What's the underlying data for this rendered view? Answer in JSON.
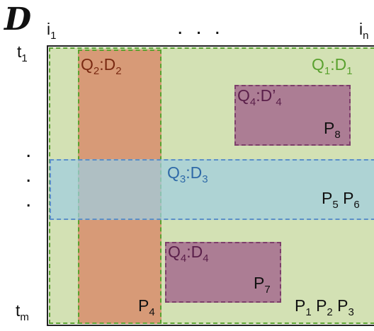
{
  "header": {
    "dataset_symbol": "D",
    "col_first": {
      "base": "i",
      "sub": "1"
    },
    "col_dots": "...",
    "col_last": {
      "base": "i",
      "sub": "n"
    }
  },
  "rows": {
    "row_first": {
      "base": "t",
      "sub": "1"
    },
    "row_dot": ".",
    "row_last": {
      "base": "t",
      "sub": "m"
    }
  },
  "regions": {
    "q1": {
      "name": "Q",
      "name_sub": "1",
      "sep": ":D",
      "data_sub": "1",
      "color": "#5aa12f"
    },
    "q2": {
      "name": "Q",
      "name_sub": "2",
      "sep": ":D",
      "data_sub": "2",
      "color": "#7a2a12"
    },
    "q3": {
      "name": "Q",
      "name_sub": "3",
      "sep": ":D",
      "data_sub": "3",
      "color": "#2f6aa8"
    },
    "q4a": {
      "name": "Q",
      "name_sub": "4",
      "sep": ":D’",
      "data_sub": "4",
      "color": "#5a1f4a"
    },
    "q4b": {
      "name": "Q",
      "name_sub": "4",
      "sep": ":D",
      "data_sub": "4",
      "color": "#5a1f4a"
    }
  },
  "partitions": {
    "p8": {
      "base": "P",
      "sub": "8"
    },
    "p5": {
      "base": "P",
      "sub": "5"
    },
    "p6": {
      "base": "P",
      "sub": "6"
    },
    "p7": {
      "base": "P",
      "sub": "7"
    },
    "p4": {
      "base": "P",
      "sub": "4"
    },
    "p1": {
      "base": "P",
      "sub": "1"
    },
    "p2": {
      "base": "P",
      "sub": "2"
    },
    "p3": {
      "base": "P",
      "sub": "3"
    }
  }
}
